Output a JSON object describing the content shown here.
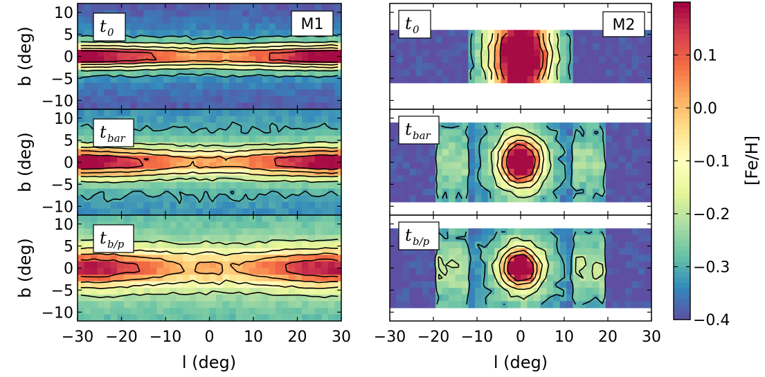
{
  "chart_data": [
    {
      "type": "heatmap",
      "model": "M1",
      "column": "left",
      "xlabel": "l (deg)",
      "ylabel": "b (deg)",
      "xlim": [
        -30,
        30
      ],
      "ylim": [
        -12,
        12
      ],
      "xticks": [
        -30,
        -20,
        -10,
        0,
        10,
        20,
        30
      ],
      "yticks": [
        -10,
        -5,
        0,
        5,
        10
      ],
      "colorbar": {
        "label": "[Fe/H]",
        "range": [
          -0.4,
          0.2
        ],
        "ticks": [
          -0.4,
          -0.3,
          -0.2,
          -0.1,
          0.0,
          0.1
        ],
        "colormap": "Spectral_r"
      },
      "panels": [
        {
          "time_label": "t_0",
          "time_symbol": "t",
          "time_subscript": "0",
          "model_label": "M1",
          "description_values": {
            "peak_metallicity": 0.15,
            "peak_l_abs": 25,
            "center_metallicity": -0.05,
            "min_metallicity": -0.4,
            "disc_thickness_deg": 3
          },
          "peak": 0.15,
          "peakL": 26,
          "thick": 2.5,
          "center": -0.06,
          "minVal": -0.4,
          "cgap": 6
        },
        {
          "time_label": "t_bar",
          "time_symbol": "t",
          "time_subscript": "bar",
          "description_values": {
            "peak_metallicity": 0.12,
            "peak_l_abs": 25,
            "center_metallicity": -0.08,
            "min_metallicity": -0.35,
            "disc_thickness_deg": 3.5
          },
          "peak": 0.12,
          "peakL": 25,
          "thick": 3.2,
          "center": -0.09,
          "minVal": -0.36,
          "cgap": 7
        },
        {
          "time_label": "t_b/p",
          "time_symbol": "t",
          "time_subscript": "b/p",
          "description_values": {
            "peak_metallicity": 0.08,
            "peak_l_abs": 24,
            "center_metallicity": -0.1,
            "min_metallicity": -0.32,
            "disc_thickness_deg": 4.5
          },
          "peak": 0.08,
          "peakL": 24,
          "thick": 4.3,
          "center": -0.11,
          "minVal": -0.33,
          "cgap": 9
        }
      ]
    },
    {
      "type": "heatmap",
      "model": "M2",
      "column": "right",
      "xlabel": "l (deg)",
      "ylabel": "",
      "xlim": [
        -30,
        30
      ],
      "ylim": [
        -12,
        12
      ],
      "xticks": [
        -30,
        -20,
        -10,
        0,
        10,
        20,
        30
      ],
      "panels": [
        {
          "time_label": "t_0",
          "time_symbol": "t",
          "time_subscript": "0",
          "model_label": "M2",
          "description_values": {
            "center_metallicity": 0.15,
            "outer_metallicity": -0.4,
            "b_coverage": [
              -5,
              5
            ]
          },
          "cval": 0.16,
          "sl": 4.5,
          "sb": 7,
          "bmin": -5.5,
          "bmax": 5.5,
          "boxL": 12,
          "wing": 0
        },
        {
          "time_label": "t_bar",
          "time_symbol": "t",
          "time_subscript": "bar",
          "description_values": {
            "center_metallicity": 0.15,
            "outer_metallicity": -0.4,
            "b_coverage": [
              -8,
              8
            ]
          },
          "cval": 0.16,
          "sl": 3.2,
          "sb": 3.6,
          "bmin": -8.5,
          "bmax": 8.5,
          "boxL": 14,
          "wing": 0.25
        },
        {
          "time_label": "t_b/p",
          "time_symbol": "t",
          "time_subscript": "b/p",
          "description_values": {
            "center_metallicity": 0.15,
            "outer_metallicity": -0.4,
            "b_coverage": [
              -9,
              9
            ]
          },
          "cval": 0.16,
          "sl": 2.8,
          "sb": 2.8,
          "bmin": -9.5,
          "bmax": 9.5,
          "boxL": 14,
          "wing": 0.35
        }
      ]
    }
  ]
}
